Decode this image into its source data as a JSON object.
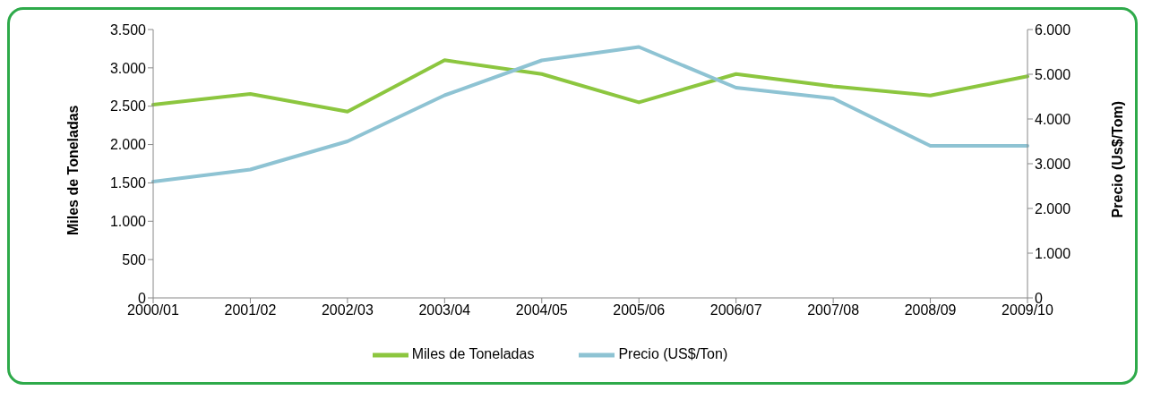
{
  "chart_data": {
    "type": "line",
    "categories": [
      "2000/01",
      "2001/02",
      "2002/03",
      "2003/04",
      "2004/05",
      "2005/06",
      "2006/07",
      "2007/08",
      "2008/09",
      "2009/10"
    ],
    "ylabel": "Miles de Toneladas",
    "y2label": "Precio (Us$/Tom)",
    "ylim": [
      0,
      3500
    ],
    "yticks": [
      {
        "value": 0,
        "label": "0"
      },
      {
        "value": 500,
        "label": "500"
      },
      {
        "value": 1000,
        "label": "1.000"
      },
      {
        "value": 1500,
        "label": "1.500"
      },
      {
        "value": 2000,
        "label": "2.000"
      },
      {
        "value": 2500,
        "label": "2.500"
      },
      {
        "value": 3000,
        "label": "3.000"
      },
      {
        "value": 3500,
        "label": "3.500"
      }
    ],
    "y2lim": [
      0,
      6000
    ],
    "y2ticks": [
      {
        "value": 0,
        "label": "0"
      },
      {
        "value": 1000,
        "label": "1.000"
      },
      {
        "value": 2000,
        "label": "2.000"
      },
      {
        "value": 3000,
        "label": "3.000"
      },
      {
        "value": 4000,
        "label": "4.000"
      },
      {
        "value": 5000,
        "label": "5.000"
      },
      {
        "value": 6000,
        "label": "6.000"
      }
    ],
    "series": [
      {
        "name": "Miles de Toneladas",
        "color": "#8cc63f",
        "values": [
          2520,
          2660,
          2430,
          3100,
          2920,
          2550,
          2920,
          2760,
          2640,
          2890
        ]
      },
      {
        "name": "Precio (US$/Ton)",
        "color": "#8ec3d3",
        "axis": "y2",
        "values": [
          2600,
          2870,
          3500,
          4530,
          5310,
          5610,
          4700,
          4460,
          3400,
          3400
        ]
      }
    ],
    "legend": "bottom",
    "grid": false,
    "marker": "none",
    "line_style": "solid"
  }
}
